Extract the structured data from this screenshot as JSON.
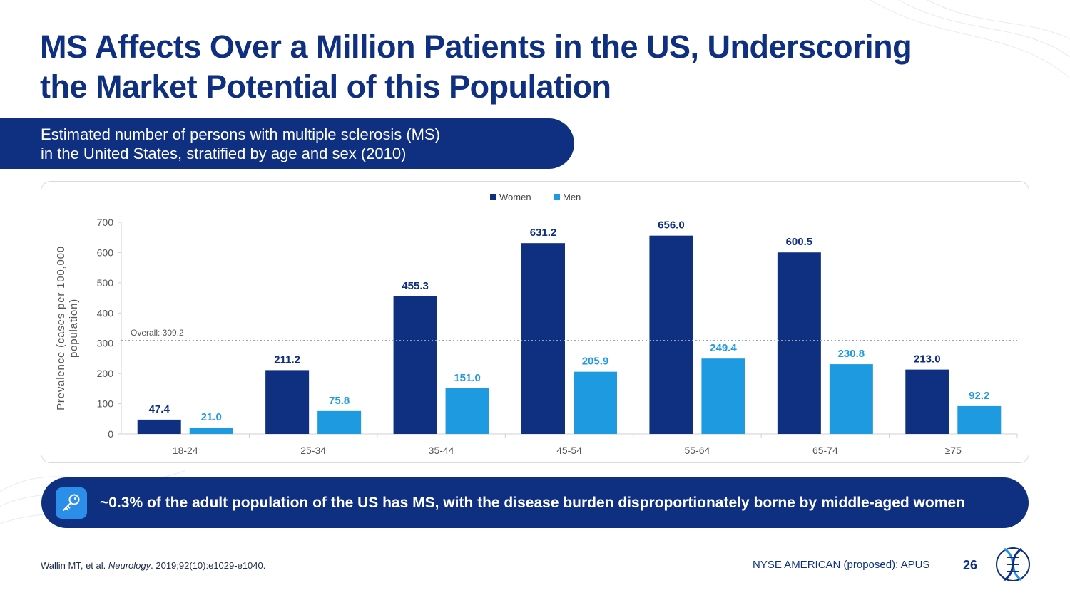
{
  "slide": {
    "title_line1": "MS Affects Over a Million Patients in the US, Underscoring",
    "title_line2": "the Market Potential of this Population",
    "subtitle_line1": "Estimated number of persons with multiple sclerosis (MS)",
    "subtitle_line2": "in the United States, stratified by age and sex (2010)",
    "callout": "~0.3% of the adult population of the US has MS, with the disease burden disproportionately borne by middle-aged women",
    "callout_icon": "key-icon",
    "citation_authors": "Wallin MT, et al. ",
    "citation_journal": "Neurology",
    "citation_rest": ". 2019;92(10):e1029-e1040.",
    "ticker": "NYSE AMERICAN (proposed): APUS",
    "page_number": "26",
    "logo_icon": "dna-helix-logo-icon"
  },
  "colors": {
    "navy": "#0f2f80",
    "women": "#0f2f80",
    "men": "#1e9be0",
    "key_badge": "#2b8ee8"
  },
  "chart_data": {
    "type": "bar",
    "categories": [
      "18-24",
      "25-34",
      "35-44",
      "45-54",
      "55-64",
      "65-74",
      "≥75"
    ],
    "series": [
      {
        "name": "Women",
        "values": [
          47.4,
          211.2,
          455.3,
          631.2,
          656.0,
          600.5,
          213.0
        ],
        "labels": [
          "47.4",
          "211.2",
          "455.3",
          "631.2",
          "656.0",
          "600.5",
          "213.0"
        ],
        "color": "#0f2f80"
      },
      {
        "name": "Men",
        "values": [
          21.0,
          75.8,
          151.0,
          205.9,
          249.4,
          230.8,
          92.2
        ],
        "labels": [
          "21.0",
          "75.8",
          "151.0",
          "205.9",
          "249.4",
          "230.8",
          "92.2"
        ],
        "color": "#1e9be0"
      }
    ],
    "ylabel_line1": "Prevalence (cases per 100,000",
    "ylabel_line2": "population)",
    "ylim": [
      0,
      700
    ],
    "yticks": [
      0,
      100,
      200,
      300,
      400,
      500,
      600,
      700
    ],
    "reference_line": {
      "value": 309.2,
      "label": "Overall: 309.2"
    },
    "legend_position": "top-center",
    "grid": false
  }
}
